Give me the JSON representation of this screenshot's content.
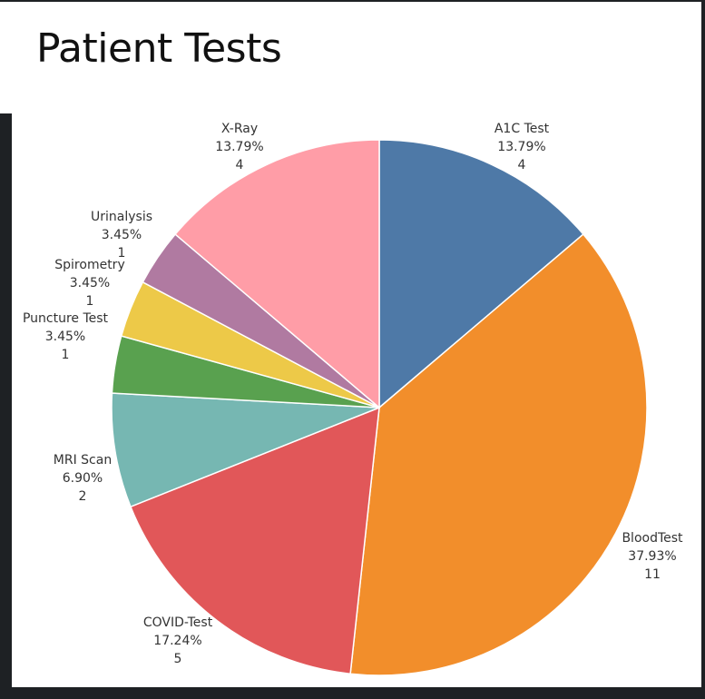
{
  "title": "Patient Tests",
  "chart_data": {
    "type": "pie",
    "title": "Patient Tests",
    "categories": [
      "A1C Test",
      "BloodTest",
      "COVID-Test",
      "MRI Scan",
      "Puncture Test",
      "Spirometry",
      "Urinalysis",
      "X-Ray"
    ],
    "values": [
      4,
      11,
      5,
      2,
      1,
      1,
      1,
      4
    ],
    "percent_labels": [
      "13.79%",
      "37.93%",
      "17.24%",
      "6.90%",
      "3.45%",
      "3.45%",
      "3.45%",
      "13.79%"
    ],
    "count_labels": [
      "4",
      "11",
      "5",
      "2",
      "1",
      "1",
      "1",
      "4"
    ],
    "colors": [
      "#4e79a7",
      "#f28e2b",
      "#e15759",
      "#76b7b2",
      "#59a14f",
      "#edc948",
      "#b07aa1",
      "#ff9da7"
    ],
    "start": "12 o'clock",
    "direction": "clockwise",
    "legend": "none"
  }
}
